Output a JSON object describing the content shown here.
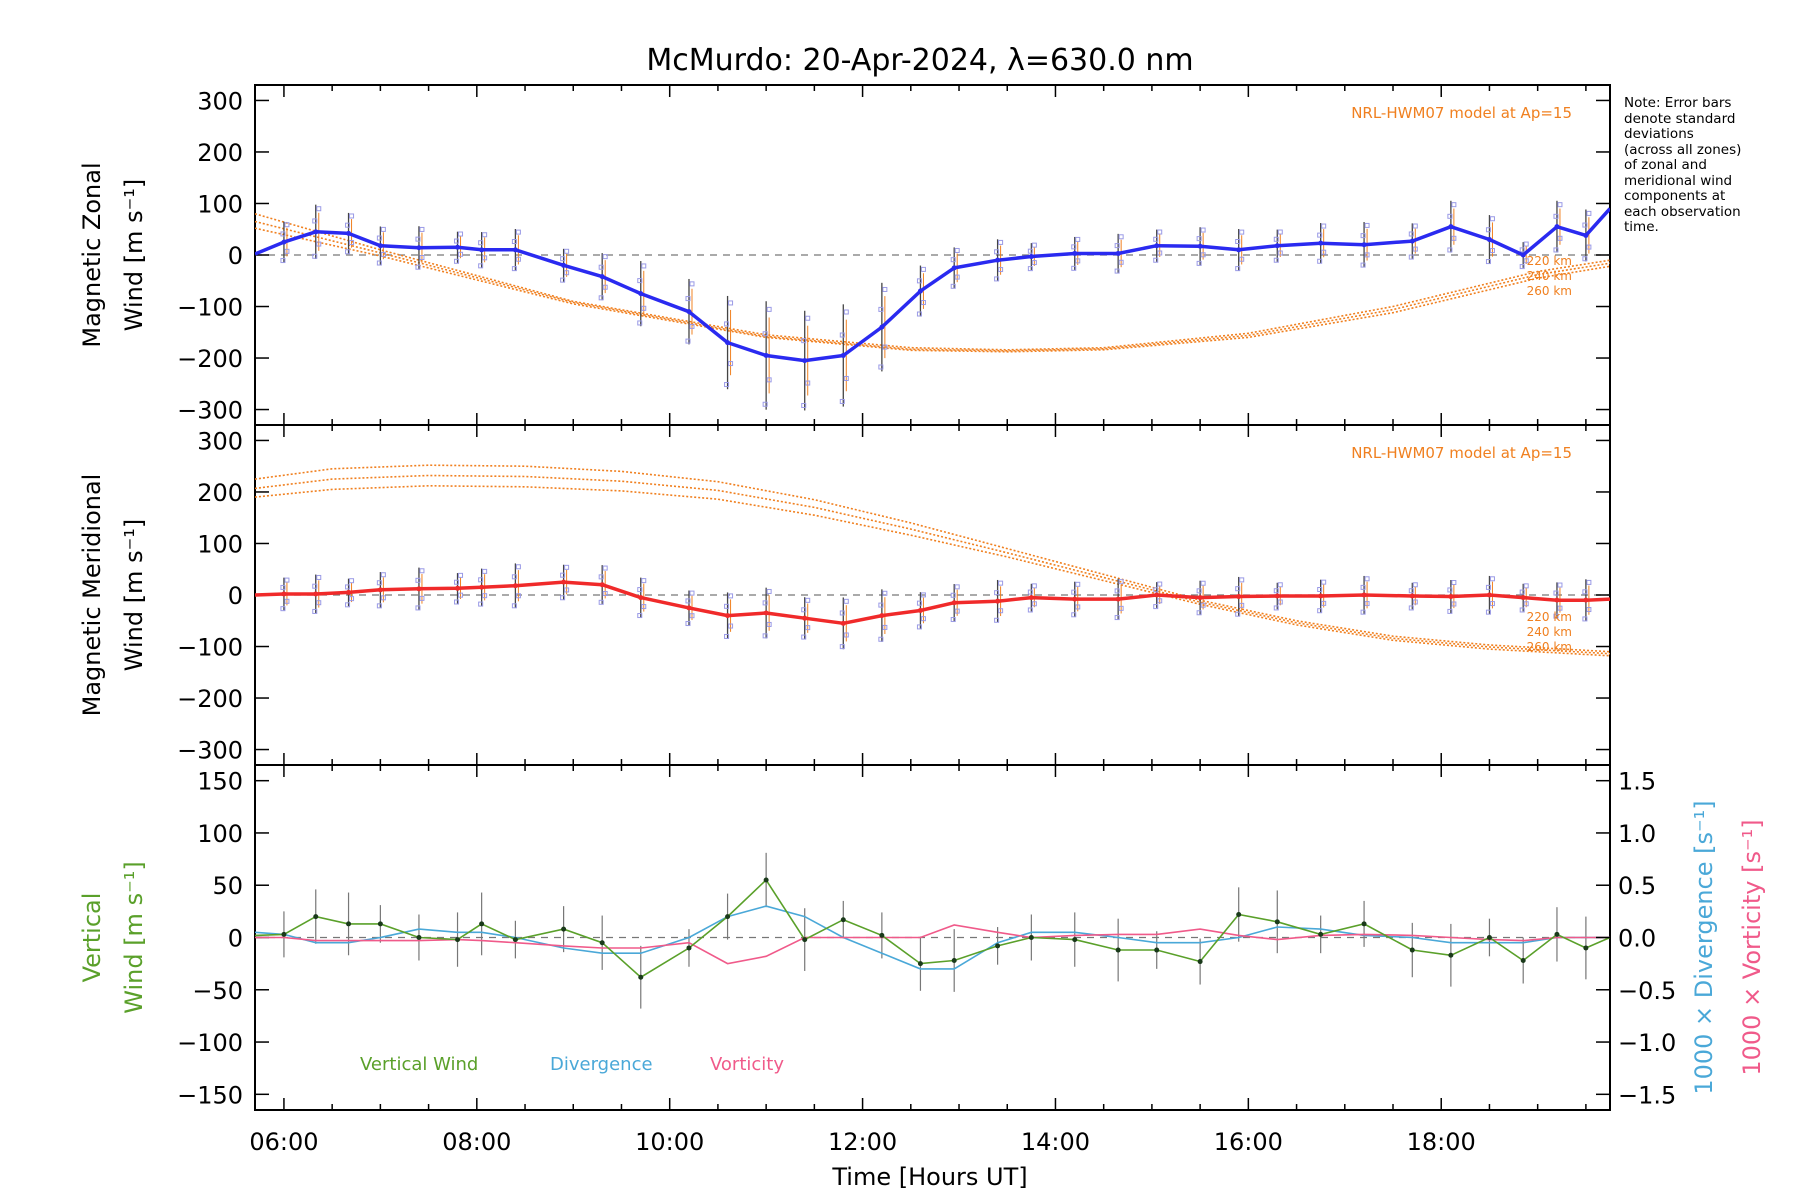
{
  "chart_data": {
    "title": "McMurdo: 20-Apr-2024, λ=630.0 nm",
    "xlabel": "Time [Hours UT]",
    "x_tick_labels": [
      "06:00",
      "08:00",
      "10:00",
      "12:00",
      "14:00",
      "16:00",
      "18:00"
    ],
    "x_range_hours": [
      5.7,
      19.75
    ],
    "note_lines": [
      "Note: Error bars",
      "denote standard",
      "deviations",
      "(across all zones)",
      "of zonal and",
      "meridional wind",
      "components at",
      "each observation",
      "time."
    ],
    "colors": {
      "zonal": "#2a2af0",
      "meridional": "#f02a2a",
      "model": "#f08020",
      "vertical": "#5aa02a",
      "divergence": "#4aa8d8",
      "vorticity": "#f05a8a",
      "scatter": "#9a9ae6"
    },
    "panels": [
      {
        "type": "line",
        "ylabel": [
          "Magnetic Zonal",
          "Wind [m s⁻¹]"
        ],
        "ylim": [
          -330,
          330
        ],
        "y_tick_labels": [
          "300",
          "200",
          "100",
          "0",
          "−100",
          "−200",
          "−300"
        ],
        "y_ticks": [
          300,
          200,
          100,
          0,
          -100,
          -200,
          -300
        ],
        "model_label": "NRL-HWM07 model at Ap=15",
        "altitude_labels": [
          "220 km",
          "240 km",
          "260 km"
        ],
        "series": [
          {
            "name": "Zonal",
            "x": [
              5.7,
              6.0,
              6.33,
              6.67,
              7.0,
              7.4,
              7.8,
              8.05,
              8.4,
              8.9,
              9.3,
              9.7,
              10.2,
              10.6,
              11.0,
              11.4,
              11.8,
              12.2,
              12.6,
              12.95,
              13.4,
              13.75,
              14.2,
              14.65,
              15.05,
              15.5,
              15.9,
              16.3,
              16.75,
              17.2,
              17.7,
              18.1,
              18.5,
              18.85,
              19.2,
              19.5,
              19.75
            ],
            "values": [
              2,
              25,
              45,
              42,
              18,
              14,
              15,
              10,
              10,
              -20,
              -42,
              -75,
              -110,
              -170,
              -195,
              -205,
              -195,
              -140,
              -70,
              -25,
              -10,
              -3,
              3,
              3,
              18,
              17,
              10,
              18,
              23,
              20,
              27,
              55,
              30,
              0,
              55,
              38,
              90
            ]
          }
        ],
        "model_curves": [
          {
            "name": "220 km",
            "x": [
              5.7,
              7,
              9,
              11,
              12.5,
              13.5,
              14.5,
              16,
              17.5,
              19,
              19.75
            ],
            "values": [
              80,
              10,
              -90,
              -155,
              -180,
              -184,
              -180,
              -152,
              -100,
              -32,
              -10
            ]
          },
          {
            "name": "240 km",
            "x": [
              5.7,
              7,
              9,
              11,
              12.5,
              13.5,
              14.5,
              16,
              17.5,
              19,
              19.75
            ],
            "values": [
              65,
              4,
              -92,
              -158,
              -183,
              -186,
              -182,
              -156,
              -106,
              -38,
              -16
            ]
          },
          {
            "name": "260 km",
            "x": [
              5.7,
              7,
              9,
              11,
              12.5,
              13.5,
              14.5,
              16,
              17.5,
              19,
              19.75
            ],
            "values": [
              52,
              -2,
              -95,
              -160,
              -185,
              -188,
              -184,
              -160,
              -112,
              -45,
              -22
            ]
          }
        ]
      },
      {
        "type": "line",
        "ylabel": [
          "Magnetic Meridional",
          "Wind [m s⁻¹]"
        ],
        "ylim": [
          -330,
          330
        ],
        "y_tick_labels": [
          "300",
          "200",
          "100",
          "0",
          "−100",
          "−200",
          "−300"
        ],
        "y_ticks": [
          300,
          200,
          100,
          0,
          -100,
          -200,
          -300
        ],
        "model_label": "NRL-HWM07 model at Ap=15",
        "altitude_labels": [
          "220 km",
          "240 km",
          "260 km"
        ],
        "series": [
          {
            "name": "Meridional",
            "x": [
              5.7,
              6.0,
              6.33,
              6.67,
              7.0,
              7.4,
              7.8,
              8.05,
              8.4,
              8.9,
              9.3,
              9.7,
              10.2,
              10.6,
              11.0,
              11.4,
              11.8,
              12.2,
              12.6,
              12.95,
              13.4,
              13.75,
              14.2,
              14.65,
              15.05,
              15.5,
              15.9,
              16.3,
              16.75,
              17.2,
              17.7,
              18.1,
              18.5,
              18.85,
              19.2,
              19.5,
              19.75
            ],
            "values": [
              0,
              2,
              2,
              5,
              10,
              12,
              13,
              15,
              18,
              25,
              20,
              -5,
              -25,
              -40,
              -35,
              -45,
              -55,
              -40,
              -30,
              -15,
              -12,
              -5,
              -8,
              -8,
              0,
              -5,
              -3,
              -2,
              -2,
              0,
              -2,
              -3,
              0,
              -5,
              -10,
              -10,
              -8
            ]
          }
        ],
        "model_curves": [
          {
            "name": "220 km",
            "x": [
              5.7,
              6.5,
              7.5,
              8.5,
              9.5,
              10.5,
              11.5,
              12.5,
              13.5,
              14.5,
              15.5,
              16.5,
              17.5,
              18.5,
              19.75
            ],
            "values": [
              225,
              245,
              252,
              250,
              240,
              220,
              185,
              140,
              90,
              40,
              -10,
              -50,
              -80,
              -97,
              -110
            ]
          },
          {
            "name": "240 km",
            "x": [
              5.7,
              6.5,
              7.5,
              8.5,
              9.5,
              10.5,
              11.5,
              12.5,
              13.5,
              14.5,
              15.5,
              16.5,
              17.5,
              18.5,
              19.75
            ],
            "values": [
              207,
              225,
              232,
              230,
              221,
              203,
              170,
              128,
              82,
              34,
              -14,
              -54,
              -84,
              -101,
              -114
            ]
          },
          {
            "name": "260 km",
            "x": [
              5.7,
              6.5,
              7.5,
              8.5,
              9.5,
              10.5,
              11.5,
              12.5,
              13.5,
              14.5,
              15.5,
              16.5,
              17.5,
              18.5,
              19.75
            ],
            "values": [
              190,
              205,
              212,
              210,
              202,
              186,
              155,
              116,
              74,
              28,
              -18,
              -58,
              -88,
              -105,
              -118
            ]
          }
        ]
      },
      {
        "type": "line",
        "ylabel": [
          "Vertical",
          "Wind [m s⁻¹]"
        ],
        "ylim": [
          -165,
          165
        ],
        "y_tick_labels": [
          "150",
          "100",
          "50",
          "0",
          "−50",
          "−100",
          "−150"
        ],
        "y_ticks": [
          150,
          100,
          50,
          0,
          -50,
          -100,
          -150
        ],
        "right_ylim": [
          -1.65,
          1.65
        ],
        "right_y_tick_labels": [
          "1.5",
          "1.0",
          "0.5",
          "0.0",
          "−0.5",
          "−1.0",
          "−1.5"
        ],
        "right_y_ticks": [
          1.5,
          1.0,
          0.5,
          0.0,
          -0.5,
          -1.0,
          -1.5
        ],
        "right_ylabels": [
          "1000 × Divergence [s⁻¹]",
          "1000 × Vorticity [s⁻¹]"
        ],
        "legend": [
          "Vertical Wind",
          "Divergence",
          "Vorticity"
        ],
        "series": [
          {
            "name": "Vertical Wind",
            "x": [
              5.7,
              6.0,
              6.33,
              6.67,
              7.0,
              7.4,
              7.8,
              8.05,
              8.4,
              8.9,
              9.3,
              9.7,
              10.2,
              10.6,
              11.0,
              11.4,
              11.8,
              12.2,
              12.6,
              12.95,
              13.4,
              13.75,
              14.2,
              14.65,
              15.05,
              15.5,
              15.9,
              16.3,
              16.75,
              17.2,
              17.7,
              18.1,
              18.5,
              18.85,
              19.2,
              19.5,
              19.75
            ],
            "values": [
              2,
              3,
              20,
              13,
              13,
              0,
              -2,
              13,
              -2,
              8,
              -5,
              -38,
              -10,
              20,
              55,
              -2,
              17,
              2,
              -25,
              -22,
              -8,
              0,
              -2,
              -12,
              -12,
              -23,
              22,
              15,
              3,
              13,
              -12,
              -17,
              0,
              -22,
              3,
              -10,
              0
            ]
          },
          {
            "name": "Divergence",
            "x": [
              5.7,
              6.0,
              6.33,
              6.67,
              7.0,
              7.4,
              7.8,
              8.05,
              8.4,
              8.9,
              9.3,
              9.7,
              10.2,
              10.6,
              11.0,
              11.4,
              11.8,
              12.2,
              12.6,
              12.95,
              13.4,
              13.75,
              14.2,
              14.65,
              15.05,
              15.5,
              15.9,
              16.3,
              16.75,
              17.2,
              17.7,
              18.1,
              18.5,
              18.85,
              19.2,
              19.5,
              19.75
            ],
            "values": [
              0.05,
              0.03,
              -0.05,
              -0.05,
              0.0,
              0.08,
              0.05,
              0.05,
              0.0,
              -0.1,
              -0.15,
              -0.15,
              0.0,
              0.2,
              0.3,
              0.2,
              0.0,
              -0.15,
              -0.3,
              -0.3,
              -0.05,
              0.05,
              0.05,
              0.0,
              -0.05,
              -0.05,
              0.0,
              0.1,
              0.08,
              0.02,
              0.0,
              -0.05,
              -0.05,
              -0.05,
              0.0,
              0.0,
              0.0
            ]
          },
          {
            "name": "Vorticity",
            "x": [
              5.7,
              6.0,
              6.33,
              6.67,
              7.0,
              7.4,
              7.8,
              8.05,
              8.4,
              8.9,
              9.3,
              9.7,
              10.2,
              10.6,
              11.0,
              11.4,
              11.8,
              12.2,
              12.6,
              12.95,
              13.4,
              13.75,
              14.2,
              14.65,
              15.05,
              15.5,
              15.9,
              16.3,
              16.75,
              17.2,
              17.7,
              18.1,
              18.5,
              18.85,
              19.2,
              19.5,
              19.75
            ],
            "values": [
              0.0,
              0.0,
              -0.03,
              -0.03,
              -0.03,
              -0.03,
              -0.02,
              -0.03,
              -0.05,
              -0.08,
              -0.1,
              -0.1,
              -0.05,
              -0.25,
              -0.18,
              0.0,
              0.0,
              0.0,
              0.0,
              0.12,
              0.05,
              0.0,
              0.02,
              0.03,
              0.03,
              0.08,
              0.02,
              -0.02,
              0.02,
              0.03,
              0.02,
              0.0,
              -0.02,
              -0.03,
              0.0,
              0.0,
              0.0
            ]
          }
        ]
      }
    ]
  }
}
